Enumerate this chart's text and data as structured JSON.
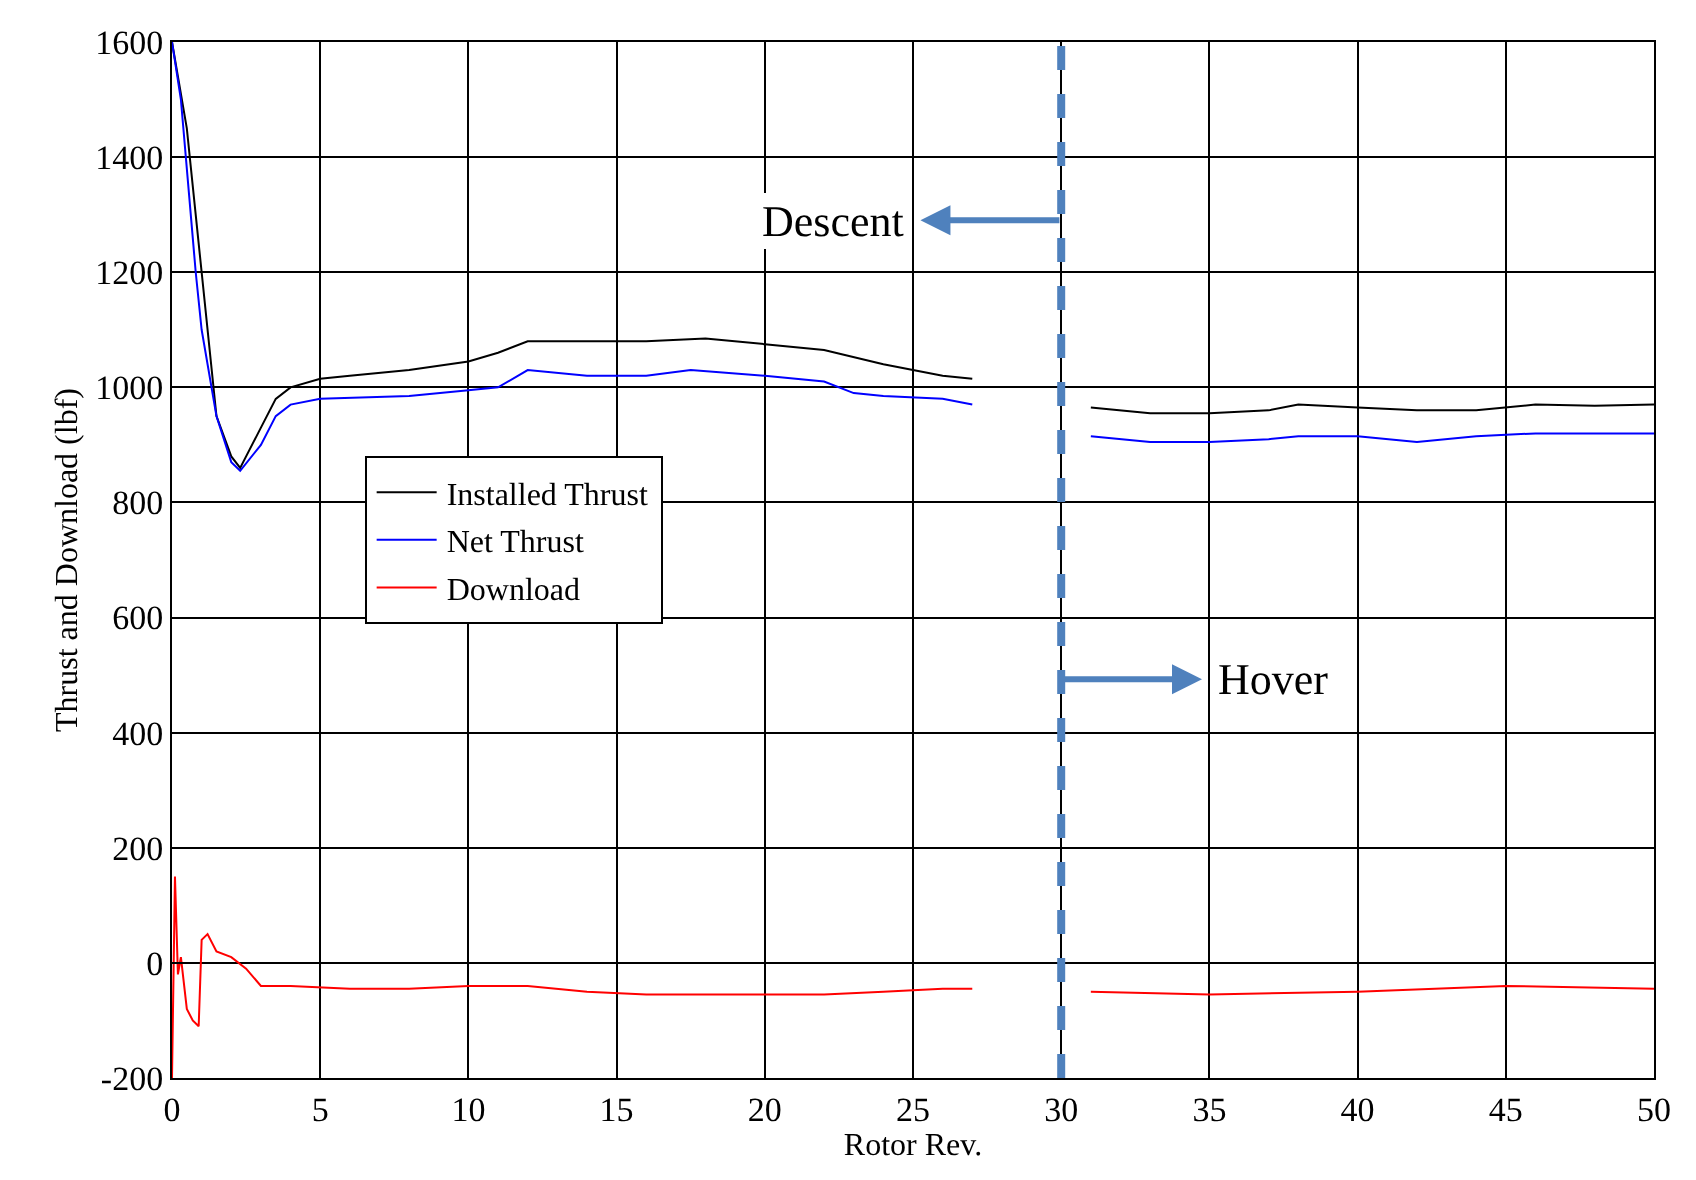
{
  "chart_data": {
    "type": "line",
    "xlabel": "Rotor Rev.",
    "ylabel": "Thrust and Download (lbf)",
    "xlim": [
      0,
      50
    ],
    "xticks": [
      0,
      5,
      10,
      15,
      20,
      25,
      30,
      35,
      40,
      45,
      50
    ],
    "ylim": [
      -200,
      1600
    ],
    "yticks": [
      -200,
      0,
      200,
      400,
      600,
      800,
      1000,
      1200,
      1400,
      1600
    ],
    "grid": true,
    "legend": "left",
    "marker": "none",
    "line_style": "solid",
    "series": [
      {
        "name": "Installed Thrust",
        "color": "#000000",
        "x": [
          0,
          0.5,
          1,
          1.5,
          2,
          2.3,
          3,
          3.5,
          4,
          5,
          6,
          8,
          10,
          11,
          12,
          14,
          16,
          18,
          20,
          22,
          24,
          25,
          26,
          27,
          29,
          31,
          33,
          35,
          37,
          38,
          40,
          42,
          44,
          46,
          48,
          50
        ],
        "values": [
          1600,
          1450,
          1200,
          950,
          880,
          860,
          930,
          980,
          1000,
          1015,
          1020,
          1030,
          1045,
          1060,
          1080,
          1080,
          1080,
          1085,
          1075,
          1065,
          1040,
          1030,
          1020,
          1015,
          null,
          965,
          955,
          955,
          960,
          970,
          965,
          960,
          960,
          970,
          968,
          970
        ]
      },
      {
        "name": "Net Thrust",
        "color": "#0000ff",
        "x": [
          0,
          0.3,
          0.8,
          1,
          1.5,
          2,
          2.3,
          3,
          3.5,
          4,
          5,
          8,
          10,
          11,
          12,
          14,
          16,
          17.5,
          20,
          22,
          23,
          24,
          26,
          27,
          29,
          31,
          33,
          35,
          37,
          38,
          40,
          42,
          44,
          46,
          48,
          50
        ],
        "values": [
          1600,
          1500,
          1200,
          1100,
          950,
          870,
          855,
          900,
          950,
          970,
          980,
          985,
          995,
          1000,
          1030,
          1020,
          1020,
          1030,
          1020,
          1010,
          990,
          985,
          980,
          970,
          null,
          915,
          905,
          905,
          910,
          915,
          915,
          905,
          915,
          920,
          920,
          920
        ]
      },
      {
        "name": "Download",
        "color": "#ff0000",
        "x": [
          0,
          0.1,
          0.2,
          0.3,
          0.5,
          0.7,
          0.9,
          1,
          1.2,
          1.5,
          2,
          2.5,
          3,
          4,
          6,
          8,
          10,
          12,
          14,
          16,
          18,
          20,
          22,
          24,
          26,
          27,
          29,
          31,
          35,
          40,
          45,
          50
        ],
        "values": [
          -200,
          150,
          -20,
          10,
          -80,
          -100,
          -110,
          40,
          50,
          20,
          10,
          -10,
          -40,
          -40,
          -45,
          -45,
          -40,
          -40,
          -50,
          -55,
          -55,
          -55,
          -55,
          -50,
          -45,
          -45,
          null,
          -50,
          -55,
          -50,
          -40,
          -45
        ]
      }
    ],
    "ref_lines": [
      {
        "axis": "x",
        "value": 30,
        "color": "#4f81bd",
        "line_style": "dashed"
      }
    ],
    "annotations": [
      "Descent",
      "Hover"
    ]
  }
}
